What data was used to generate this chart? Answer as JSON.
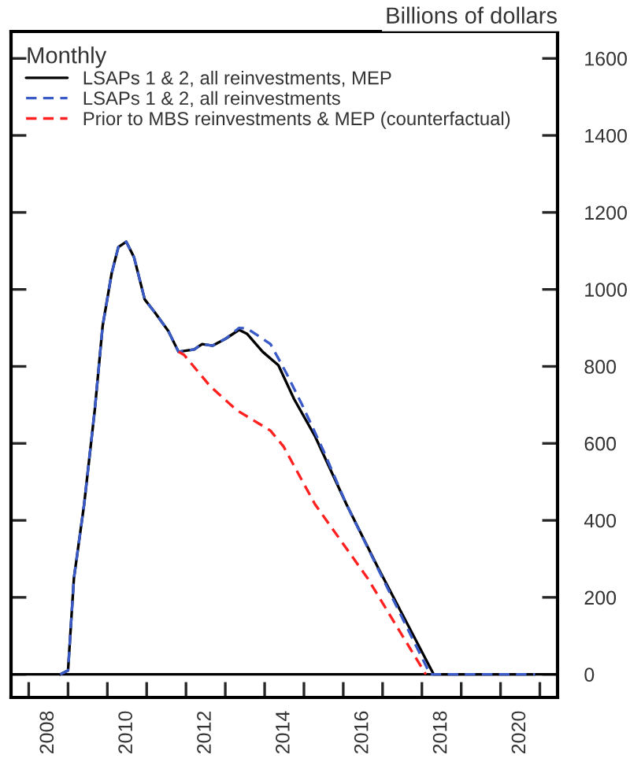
{
  "chart_data": {
    "type": "line",
    "ylabel": "Billions of dollars",
    "legend_title": "Monthly",
    "legend": "top left",
    "xlim": [
      2007.55,
      2021.45
    ],
    "xticks": [
      {
        "value": 2008,
        "label": null
      },
      {
        "value": 2008.5,
        "label": "2008"
      },
      {
        "value": 2009,
        "label": null
      },
      {
        "value": 2010,
        "label": null
      },
      {
        "value": 2010.5,
        "label": "2010"
      },
      {
        "value": 2011,
        "label": null
      },
      {
        "value": 2012,
        "label": null
      },
      {
        "value": 2012.5,
        "label": "2012"
      },
      {
        "value": 2013,
        "label": null
      },
      {
        "value": 2014,
        "label": null
      },
      {
        "value": 2014.5,
        "label": "2014"
      },
      {
        "value": 2015,
        "label": null
      },
      {
        "value": 2016,
        "label": null
      },
      {
        "value": 2016.5,
        "label": "2016"
      },
      {
        "value": 2017,
        "label": null
      },
      {
        "value": 2018,
        "label": null
      },
      {
        "value": 2018.5,
        "label": "2018"
      },
      {
        "value": 2019,
        "label": null
      },
      {
        "value": 2020,
        "label": null
      },
      {
        "value": 2020.5,
        "label": "2020"
      },
      {
        "value": 2021,
        "label": null
      }
    ],
    "ylim": [
      -60,
      1670
    ],
    "yticks": [
      0,
      200,
      400,
      600,
      800,
      1000,
      1200,
      1400,
      1600
    ],
    "ref_lines": [
      {
        "axis": "y",
        "value": 0,
        "color": "#000000"
      }
    ],
    "grid": false,
    "series": [
      {
        "name": "LSAPs 1 & 2, all reinvestments, MEP",
        "color": "#000000",
        "line_style": "solid",
        "x": [
          2008.8,
          2009.0,
          2009.15,
          2009.41,
          2009.68,
          2009.88,
          2010.11,
          2010.28,
          2010.48,
          2010.68,
          2010.95,
          2011.21,
          2011.55,
          2011.81,
          2012.21,
          2012.41,
          2012.68,
          2013.01,
          2013.35,
          2013.55,
          2013.95,
          2014.35,
          2014.75,
          2015.28,
          2016.08,
          2016.88,
          2018.3,
          2020.88
        ],
        "values": [
          0,
          10,
          250,
          442,
          687,
          905,
          1042,
          1110,
          1124,
          1083,
          974,
          940,
          892,
          838,
          844,
          858,
          854,
          872,
          895,
          885,
          838,
          803,
          715,
          619,
          442,
          278,
          0,
          0
        ]
      },
      {
        "name": "LSAPs 1 & 2, all reinvestments",
        "color": "#3a5bc7",
        "line_style": "dashed",
        "x": [
          2008.8,
          2009.0,
          2009.15,
          2009.41,
          2009.68,
          2009.88,
          2010.11,
          2010.28,
          2010.48,
          2010.68,
          2010.95,
          2011.21,
          2011.55,
          2011.81,
          2012.21,
          2012.41,
          2012.68,
          2013.01,
          2013.35,
          2013.55,
          2014.15,
          2014.55,
          2014.95,
          2015.5,
          2016.08,
          2016.88,
          2018.21,
          2020.88
        ],
        "values": [
          0,
          10,
          250,
          442,
          687,
          905,
          1042,
          1110,
          1124,
          1083,
          974,
          940,
          892,
          838,
          844,
          858,
          854,
          872,
          900,
          899,
          858,
          783,
          701,
          580,
          442,
          275,
          0,
          0
        ]
      },
      {
        "name": "Prior to MBS reinvestments & MEP (counterfactual)",
        "color": "#ff2020",
        "line_style": "dashed",
        "x": [
          2011.81,
          2011.95,
          2012.61,
          2013.28,
          2014.15,
          2014.48,
          2015.28,
          2016.61,
          2018.1
        ],
        "values": [
          838,
          830,
          749,
          687,
          633,
          592,
          442,
          251,
          0
        ]
      }
    ]
  }
}
